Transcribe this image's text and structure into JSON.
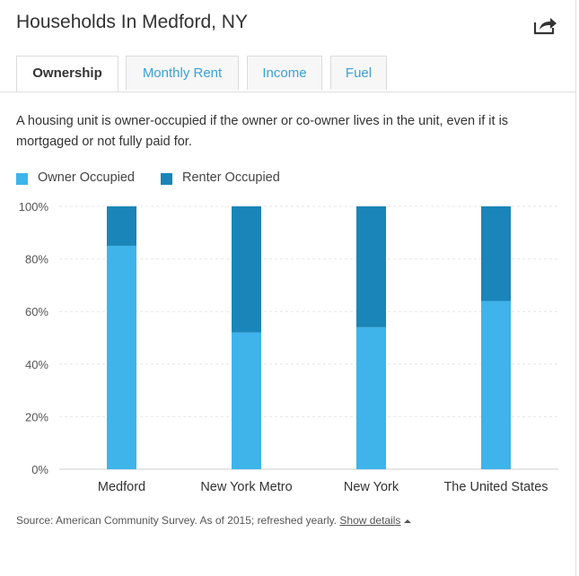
{
  "header": {
    "title": "Households In Medford, NY",
    "share_icon": "share-arrow-icon"
  },
  "tabs": [
    {
      "label": "Ownership",
      "active": true
    },
    {
      "label": "Monthly Rent",
      "active": false
    },
    {
      "label": "Income",
      "active": false
    },
    {
      "label": "Fuel",
      "active": false
    }
  ],
  "description": "A housing unit is owner-occupied if the owner or co-owner lives in the unit, even if it is mortgaged or not fully paid for.",
  "legend": [
    {
      "label": "Owner Occupied",
      "color": "#3eb4ea"
    },
    {
      "label": "Renter Occupied",
      "color": "#1a85b8"
    }
  ],
  "chart_data": {
    "type": "bar",
    "stacked": true,
    "categories": [
      "Medford",
      "New York Metro",
      "New York",
      "The United States"
    ],
    "series": [
      {
        "name": "Owner Occupied",
        "values": [
          85,
          52,
          54,
          64
        ],
        "color": "#3eb4ea"
      },
      {
        "name": "Renter Occupied",
        "values": [
          15,
          48,
          46,
          36
        ],
        "color": "#1a85b8"
      }
    ],
    "yticks": [
      "0%",
      "20%",
      "40%",
      "60%",
      "80%",
      "100%"
    ],
    "ylim": [
      0,
      100
    ],
    "grid": true,
    "legend_position": "top-left"
  },
  "footer": {
    "source": "Source: American Community Survey. As of 2015; refreshed yearly.",
    "show_details": "Show details",
    "show_details_icon": "caret-up-icon"
  }
}
